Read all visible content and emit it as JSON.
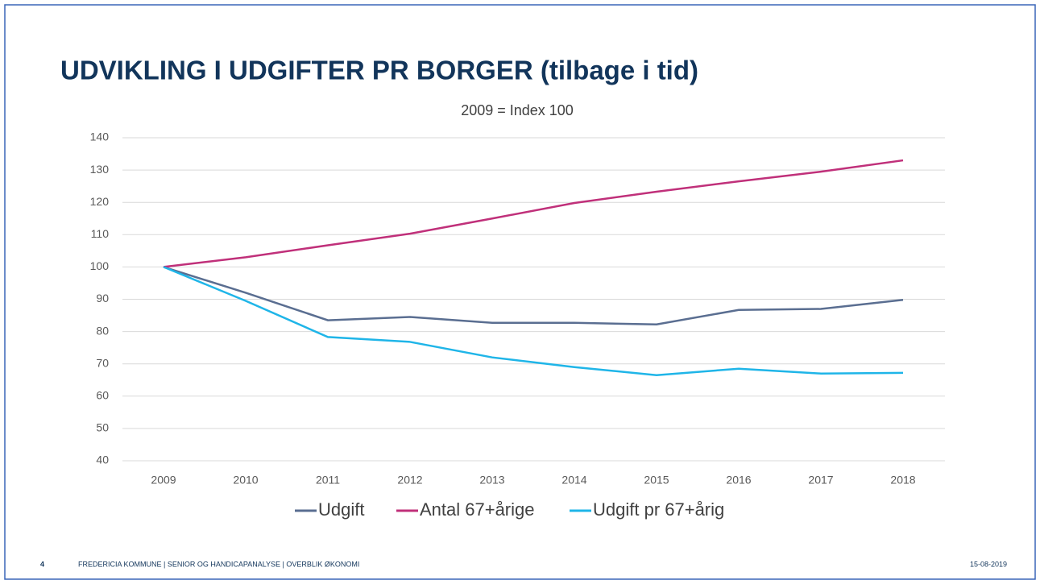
{
  "chart_data": {
    "type": "line",
    "title": "UDVIKLING I UDGIFTER PR BORGER (tilbage i tid)",
    "subtitle": "2009 = Index 100",
    "categories": [
      "2009",
      "2010",
      "2011",
      "2012",
      "2013",
      "2014",
      "2015",
      "2016",
      "2017",
      "2018"
    ],
    "series": [
      {
        "name": "Udgift",
        "color": "#5a6e91",
        "values": [
          100,
          92,
          83.5,
          84.5,
          82.7,
          82.7,
          82.2,
          86.7,
          87,
          89.8
        ]
      },
      {
        "name": "Antal 67+årige",
        "color": "#c0307a",
        "values": [
          100,
          103,
          106.7,
          110.3,
          115,
          119.8,
          123.3,
          126.5,
          129.5,
          133
        ]
      },
      {
        "name": "Udgift pr 67+årig",
        "color": "#1fb5e8",
        "values": [
          100,
          89.5,
          78.3,
          76.8,
          72,
          69,
          66.5,
          68.5,
          67,
          67.2
        ]
      }
    ],
    "ylim": [
      40,
      140
    ],
    "yticks": [
      40,
      50,
      60,
      70,
      80,
      90,
      100,
      110,
      120,
      130,
      140
    ],
    "grid": true,
    "legend": "bottom"
  },
  "footer": {
    "page": "4",
    "text": "FREDERICIA KOMMUNE  |  SENIOR OG HANDICAPANALYSE  |  OVERBLIK ØKONOMI",
    "date": "15-08-2019"
  }
}
